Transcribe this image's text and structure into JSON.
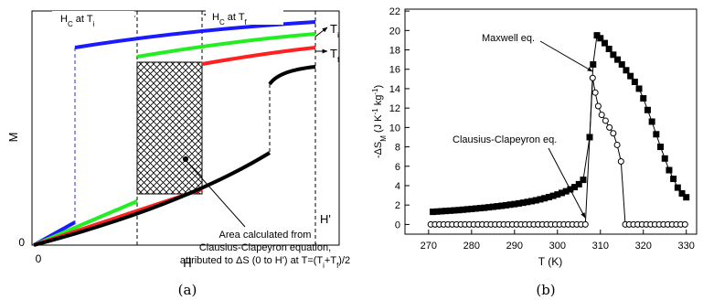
{
  "panel_a": {
    "hc_ti": [
      "H",
      "C",
      " at T",
      "i"
    ],
    "hc_tf": [
      "H",
      "C",
      " at T",
      "f"
    ],
    "ti": [
      "T",
      "i"
    ],
    "tf": [
      "T",
      "f"
    ],
    "ylabel": "M",
    "xlabel": "H",
    "y_zero": "0",
    "x_zero": "0",
    "h_prime": "H'",
    "note": [
      "Area calculated from",
      "Clausius-Clapeyron equation,"
    ],
    "note_last": [
      "attributed to ΔS (0 to H') at T=(T",
      "i",
      "+T",
      "f",
      ")/2"
    ],
    "caption": "(a)"
  },
  "chart_data": {
    "type": "scatter",
    "caption": "(b)",
    "xlabel": "T (K)",
    "ylabel": [
      "-ΔS",
      "M",
      " (J K",
      "-1",
      " kg",
      "-1",
      ")"
    ],
    "xlim": [
      264.5,
      332.4
    ],
    "xticks": [
      270,
      280,
      290,
      300,
      310,
      320,
      330
    ],
    "ylim": [
      -1,
      22.2
    ],
    "yticks": [
      0,
      2,
      4,
      6,
      8,
      10,
      12,
      14,
      16,
      18,
      20,
      22
    ],
    "annotations": [
      "Maxwell eq.",
      "Clausius-Clapeyron eq."
    ],
    "series": [
      {
        "marker": "square",
        "marker_fill": true,
        "color": "#000000",
        "x": [
          271,
          272,
          273,
          274,
          275,
          276,
          277,
          278,
          279,
          280,
          281,
          282,
          283,
          284,
          285,
          286,
          287,
          288,
          289,
          290,
          291,
          292,
          293,
          294,
          295,
          296,
          297,
          298,
          299,
          300,
          301,
          302,
          303,
          304,
          305,
          306,
          307.5,
          308.3,
          309.2,
          310,
          311,
          312,
          313,
          314,
          315,
          316,
          317,
          318,
          319,
          320,
          321,
          322,
          323,
          324,
          325,
          326,
          327,
          328,
          329,
          330
        ],
        "values": [
          1.3,
          1.33,
          1.36,
          1.39,
          1.42,
          1.45,
          1.48,
          1.52,
          1.56,
          1.6,
          1.64,
          1.68,
          1.72,
          1.77,
          1.82,
          1.87,
          1.92,
          1.98,
          2.04,
          2.1,
          2.17,
          2.24,
          2.32,
          2.4,
          2.49,
          2.59,
          2.7,
          2.82,
          2.95,
          3.09,
          3.25,
          3.42,
          3.62,
          3.85,
          4.15,
          4.6,
          9.0,
          16.5,
          19.5,
          19.2,
          18.7,
          18.1,
          17.5,
          17.0,
          16.5,
          15.9,
          15.3,
          14.7,
          14.0,
          13.0,
          11.8,
          10.6,
          9.3,
          8.0,
          6.8,
          5.6,
          4.7,
          3.8,
          3.2,
          2.8
        ]
      },
      {
        "marker": "circle",
        "marker_fill": false,
        "color": "#000000",
        "x": [
          270.5,
          271.5,
          272.5,
          273.5,
          274.5,
          275.5,
          276.5,
          277.5,
          278.5,
          279.5,
          280.5,
          281.5,
          282.5,
          283.5,
          284.5,
          285.5,
          286.5,
          287.5,
          288.5,
          289.5,
          290.5,
          291.5,
          292.5,
          293.5,
          294.5,
          295.5,
          296.5,
          297.5,
          298.5,
          299.5,
          300.5,
          301.5,
          302.5,
          303.5,
          304.5,
          305.5,
          306.5,
          308.2,
          308.8,
          309.5,
          310.3,
          311.2,
          312.1,
          313,
          313.9,
          314.8,
          315.8,
          316.7,
          317.7,
          318.7,
          319.7,
          320.7,
          321.7,
          322.7,
          323.7,
          324.7,
          325.7,
          326.7,
          327.7,
          328.7,
          329.7
        ],
        "values": [
          0,
          0,
          0,
          0,
          0,
          0,
          0,
          0,
          0,
          0,
          0,
          0,
          0,
          0,
          0,
          0,
          0,
          0,
          0,
          0,
          0,
          0,
          0,
          0,
          0,
          0,
          0,
          0,
          0,
          0,
          0,
          0,
          0,
          0,
          0,
          0,
          0,
          15.1,
          13.6,
          12.2,
          11.3,
          10.7,
          10.0,
          9.4,
          8.2,
          6.5,
          0,
          0,
          0,
          0,
          0,
          0,
          0,
          0,
          0,
          0,
          0,
          0,
          0,
          0,
          0
        ]
      }
    ]
  }
}
